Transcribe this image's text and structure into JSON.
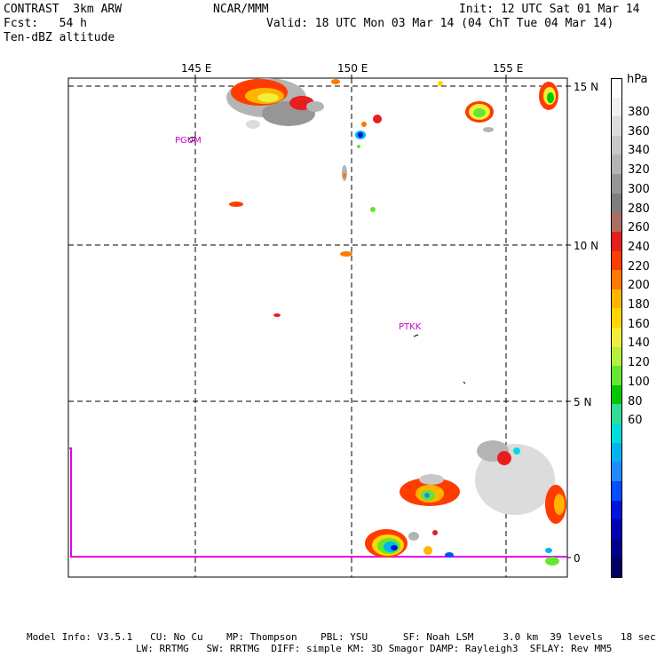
{
  "header": {
    "product": "CONTRAST  3km ARW",
    "forecast": "Fcst:   54 h",
    "field": "Ten-dBZ altitude",
    "center": "NCAR/MMM",
    "init": "Init: 12 UTC Sat 01 Mar 14",
    "valid": "Valid: 18 UTC Mon 03 Mar 14 (04 ChT Tue 04 Mar 14)"
  },
  "map": {
    "lon_labels": [
      "145 E",
      "150 E",
      "155 E"
    ],
    "lat_labels": [
      "15 N",
      "10 N",
      "5 N",
      "0"
    ],
    "stations": [
      {
        "id": "PGUM",
        "label": "PGUM"
      },
      {
        "id": "PTKK",
        "label": "PTKK"
      }
    ]
  },
  "colorbar": {
    "unit": "hPa",
    "labels": [
      "380",
      "360",
      "340",
      "320",
      "300",
      "280",
      "260",
      "240",
      "220",
      "200",
      "180",
      "160",
      "140",
      "120",
      "100",
      "80",
      "60"
    ],
    "colors": [
      "#ffffff",
      "#f0f0f0",
      "#dcdcdc",
      "#c8c8c8",
      "#b4b4b4",
      "#969696",
      "#7d7d7d",
      "#aa6e64",
      "#e61e1e",
      "#ff3c00",
      "#ff7800",
      "#ffb400",
      "#ffd700",
      "#f0f03c",
      "#b4f03c",
      "#64e632",
      "#00c800",
      "#32dc96",
      "#00dcdc",
      "#00b4f0",
      "#1e8cff",
      "#0050ff",
      "#0014dc",
      "#0000b4",
      "#00008c",
      "#000064"
    ]
  },
  "footer": {
    "line1": "Model Info: V3.5.1   CU: No Cu    MP: Thompson    PBL: YSU      SF: Noah LSM     3.0 km  39 levels   18 sec",
    "line2": "LW: RRTMG   SW: RRTMG  DIFF: simple KM: 3D Smagor DAMP: Rayleigh3  SFLAY: Rev MM5"
  }
}
